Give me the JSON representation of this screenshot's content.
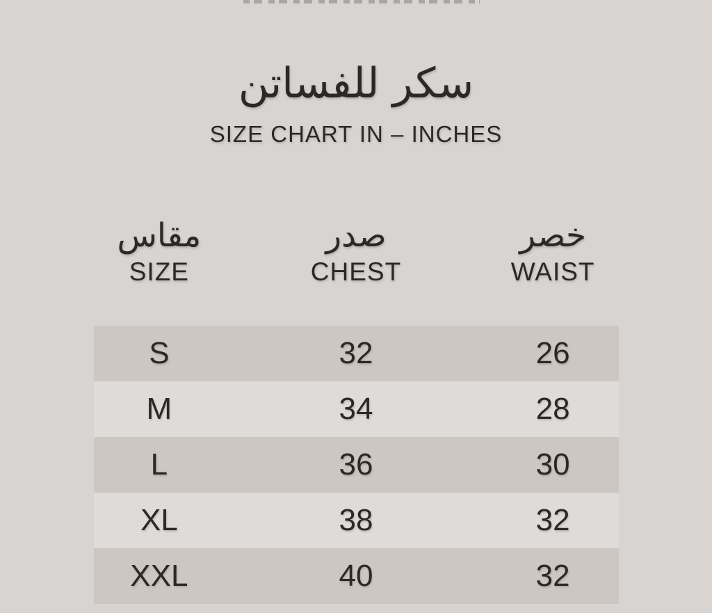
{
  "chart_data": {
    "type": "table",
    "title": "سكر للفساتن",
    "subtitle": "SIZE CHART IN – INCHES",
    "columns": [
      {
        "ar": "مقاس",
        "en": "SIZE"
      },
      {
        "ar": "صدر",
        "en": "CHEST"
      },
      {
        "ar": "خصر",
        "en": "WAIST"
      }
    ],
    "rows": [
      [
        "S",
        "32",
        "26"
      ],
      [
        "M",
        "34",
        "28"
      ],
      [
        "L",
        "36",
        "30"
      ],
      [
        "XL",
        "38",
        "32"
      ],
      [
        "XXL",
        "40",
        "32"
      ]
    ],
    "layout_hints": {
      "shaded_row_indices": [
        0,
        2,
        4
      ],
      "units": "inches"
    }
  },
  "colors": {
    "page_background": "#d8d4d2",
    "row_shaded": "#ccc7c2",
    "row_light": "#dedbd8",
    "text": "#2b2825"
  }
}
